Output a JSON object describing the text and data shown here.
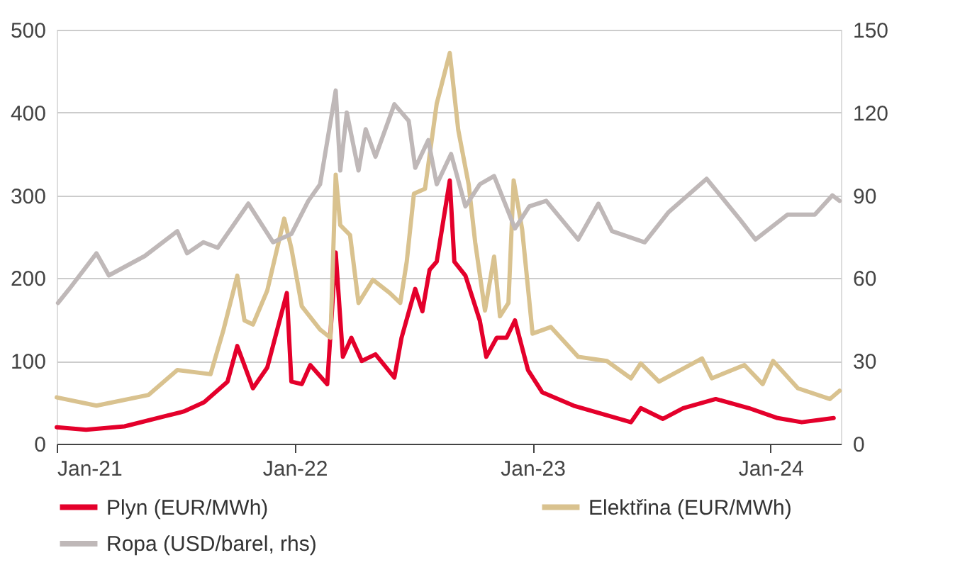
{
  "chart_data": {
    "type": "line",
    "xlim": [
      "2021-01-01",
      "2024-04-18"
    ],
    "xticks": [
      {
        "value": "2021-01-01",
        "label": "Jan-21"
      },
      {
        "value": "2022-01-01",
        "label": "Jan-22"
      },
      {
        "value": "2023-01-01",
        "label": "Jan-23"
      },
      {
        "value": "2024-01-01",
        "label": "Jan-24"
      }
    ],
    "ylim": [
      0,
      500
    ],
    "yticks": [
      0,
      100,
      200,
      300,
      400,
      500
    ],
    "y2lim": [
      0,
      150
    ],
    "y2ticks": [
      0,
      30,
      60,
      90,
      120,
      150
    ],
    "grid": "y",
    "legend": "bottom",
    "line_style": "solid",
    "marker": "none",
    "series": [
      {
        "name": "Plyn (EUR/MWh)",
        "color": "#e4002b",
        "x": [
          "2021-01-01",
          "2021-02-15",
          "2021-04-15",
          "2021-06-15",
          "2021-07-15",
          "2021-08-15",
          "2021-09-20",
          "2021-10-05",
          "2021-10-29",
          "2021-11-20",
          "2021-12-20",
          "2021-12-27",
          "2022-01-12",
          "2022-01-25",
          "2022-02-20",
          "2022-03-05",
          "2022-03-16",
          "2022-03-29",
          "2022-04-14",
          "2022-05-05",
          "2022-06-03",
          "2022-06-14",
          "2022-07-05",
          "2022-07-16",
          "2022-07-27",
          "2022-08-07",
          "2022-08-27",
          "2022-09-03",
          "2022-09-20",
          "2022-10-12",
          "2022-10-22",
          "2022-11-07",
          "2022-11-22",
          "2022-12-05",
          "2022-12-25",
          "2023-01-16",
          "2023-03-05",
          "2023-06-01",
          "2023-06-16",
          "2023-07-20",
          "2023-08-20",
          "2023-10-09",
          "2023-11-29",
          "2024-01-12",
          "2024-02-18",
          "2024-04-07"
        ],
        "values": [
          20,
          17,
          21,
          33,
          39,
          50,
          75,
          118,
          67,
          92,
          182,
          75,
          72,
          95,
          72,
          231,
          105,
          128,
          100,
          108,
          80,
          128,
          187,
          160,
          210,
          220,
          318,
          220,
          203,
          149,
          105,
          128,
          128,
          149,
          89,
          62,
          46,
          26,
          43,
          30,
          43,
          54,
          43,
          31,
          26,
          31
        ]
      },
      {
        "name": "Elektřina (EUR/MWh)",
        "color": "#d9c28f",
        "x": [
          "2021-01-01",
          "2021-03-03",
          "2021-05-22",
          "2021-07-05",
          "2021-08-25",
          "2021-09-14",
          "2021-10-05",
          "2021-10-16",
          "2021-10-29",
          "2021-11-20",
          "2021-12-16",
          "2021-12-27",
          "2022-01-12",
          "2022-02-09",
          "2022-02-25",
          "2022-03-05",
          "2022-03-12",
          "2022-03-27",
          "2022-04-09",
          "2022-05-01",
          "2022-05-27",
          "2022-06-12",
          "2022-06-22",
          "2022-07-03",
          "2022-07-20",
          "2022-08-07",
          "2022-08-27",
          "2022-09-09",
          "2022-09-25",
          "2022-10-05",
          "2022-10-20",
          "2022-11-03",
          "2022-11-12",
          "2022-11-25",
          "2022-12-03",
          "2022-12-16",
          "2023-01-01",
          "2023-01-29",
          "2023-03-12",
          "2023-04-25",
          "2023-06-01",
          "2023-06-16",
          "2023-07-14",
          "2023-09-18",
          "2023-10-03",
          "2023-11-22",
          "2023-12-20",
          "2024-01-05",
          "2024-02-12",
          "2024-04-01",
          "2024-04-16"
        ],
        "values": [
          56,
          46,
          59,
          89,
          84,
          138,
          203,
          149,
          144,
          185,
          272,
          236,
          166,
          138,
          128,
          325,
          264,
          252,
          170,
          198,
          182,
          170,
          220,
          302,
          308,
          411,
          472,
          379,
          313,
          243,
          161,
          226,
          154,
          170,
          318,
          259,
          133,
          141,
          105,
          100,
          79,
          97,
          75,
          103,
          79,
          95,
          72,
          100,
          67,
          54,
          64
        ]
      },
      {
        "name": "Ropa (USD/barel, rhs)",
        "color": "#bfb8b8",
        "axis": "y2",
        "x": [
          "2021-01-03",
          "2021-01-20",
          "2021-03-03",
          "2021-03-22",
          "2021-05-16",
          "2021-07-05",
          "2021-07-20",
          "2021-08-14",
          "2021-09-05",
          "2021-10-22",
          "2021-11-29",
          "2021-12-27",
          "2022-01-22",
          "2022-02-09",
          "2022-03-05",
          "2022-03-12",
          "2022-03-22",
          "2022-04-09",
          "2022-04-20",
          "2022-05-05",
          "2022-06-03",
          "2022-06-25",
          "2022-07-05",
          "2022-07-25",
          "2022-08-07",
          "2022-08-29",
          "2022-09-20",
          "2022-10-12",
          "2022-11-03",
          "2022-12-05",
          "2022-12-27",
          "2023-01-22",
          "2023-03-12",
          "2023-04-12",
          "2023-05-03",
          "2023-06-22",
          "2023-07-29",
          "2023-09-25",
          "2023-10-16",
          "2023-11-16",
          "2023-12-09",
          "2024-01-27",
          "2024-03-09",
          "2024-04-05",
          "2024-04-16"
        ],
        "values": [
          51,
          56,
          69,
          61,
          68,
          77,
          69,
          73,
          71,
          87,
          73,
          76,
          88,
          94,
          128,
          99,
          120,
          99,
          114,
          104,
          123,
          117,
          100,
          110,
          94,
          105,
          86,
          94,
          97,
          78,
          86,
          88,
          74,
          87,
          77,
          73,
          84,
          96,
          90,
          81,
          74,
          83,
          83,
          90,
          88
        ]
      }
    ]
  }
}
